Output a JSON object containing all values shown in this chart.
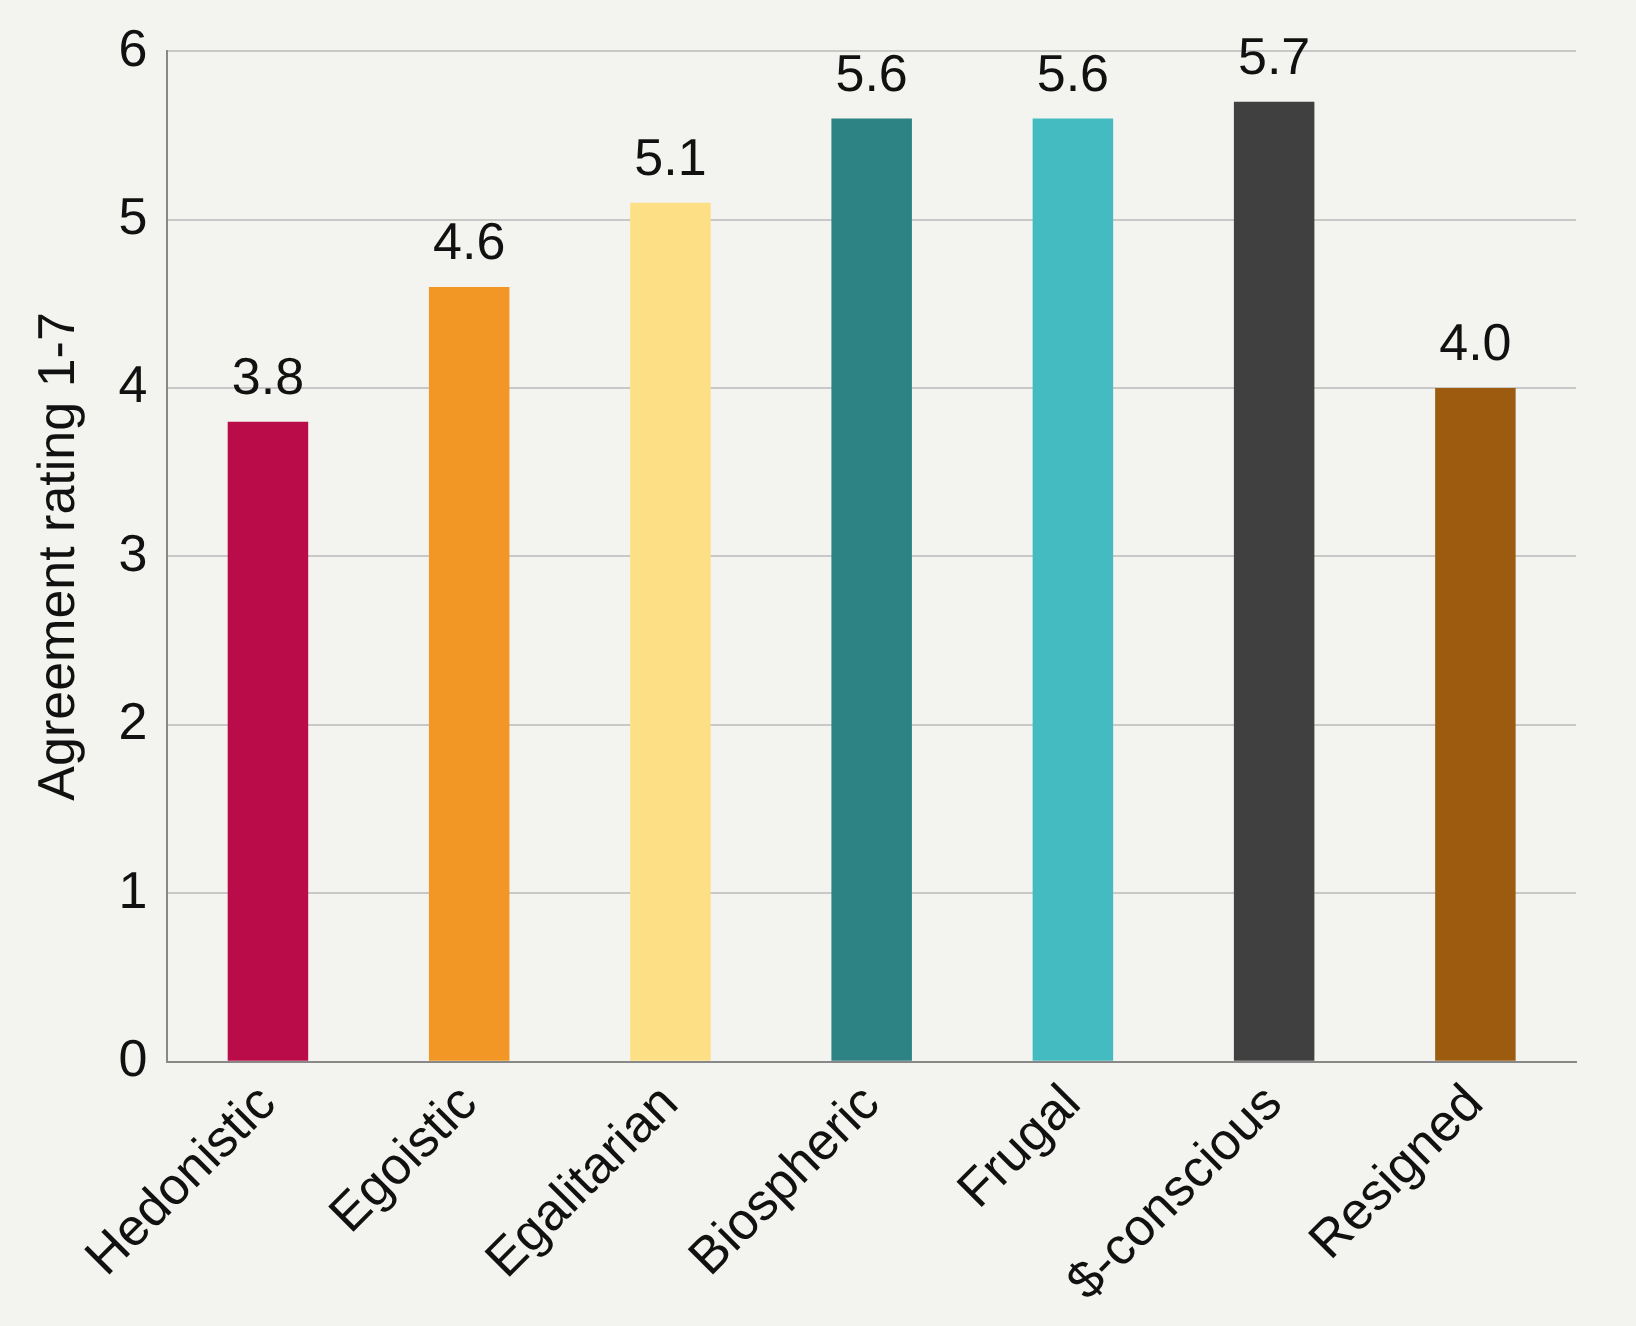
{
  "chart_data": {
    "type": "bar",
    "ylabel": "Agreement rating 1-7",
    "categories": [
      "Hedonistic",
      "Egoistic",
      "Egalitarian",
      "Biospheric",
      "Frugal",
      "$-conscious",
      "Resigned"
    ],
    "values": [
      3.8,
      4.6,
      5.1,
      5.6,
      5.6,
      5.7,
      4.0
    ],
    "colors": [
      "#b90c49",
      "#f29725",
      "#fde085",
      "#2d8283",
      "#44bbc1",
      "#404040",
      "#9c5b0e"
    ],
    "ylim": [
      0,
      6
    ],
    "yticks": [
      0,
      1,
      2,
      3,
      4,
      5,
      6
    ],
    "value_labels": [
      "3.8",
      "4.6",
      "5.1",
      "5.6",
      "5.6",
      "5.7",
      "4.0"
    ],
    "grid": "y",
    "legend": false
  }
}
